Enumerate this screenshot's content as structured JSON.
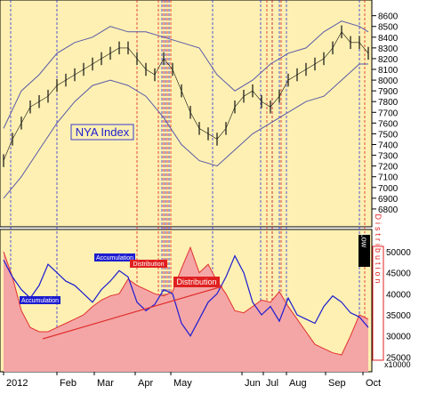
{
  "colors": {
    "panel_bg": "#fdf0b2",
    "price_bar": "#111111",
    "band": "#5a5aa8",
    "accum_line": "#1c1cd0",
    "dist_line": "#e03030",
    "dist_fill": "#f4a6a6",
    "acc_vline": "#3030e0",
    "dist_vline": "#e02020",
    "grid": "#888888"
  },
  "chart_data": [
    {
      "type": "line",
      "title": "NYA Index",
      "y_ticks": [
        6800,
        6900,
        7000,
        7100,
        7200,
        7300,
        7400,
        7500,
        7600,
        7700,
        7800,
        7900,
        8000,
        8100,
        8200,
        8300,
        8400,
        8500,
        8600
      ],
      "ylim": [
        6700,
        8680
      ],
      "x_ticks": [
        "2012",
        "Feb",
        "Mar",
        "Apr",
        "May",
        "Jun",
        "Jul",
        "Aug",
        "Sep",
        "Oct"
      ],
      "series": [
        {
          "x": [
            0,
            10,
            20,
            30,
            40,
            50,
            60,
            70,
            80,
            90,
            100,
            110,
            120,
            130,
            140,
            150,
            160,
            170,
            180,
            190,
            200,
            210,
            220,
            230,
            240,
            250,
            260,
            270,
            280,
            290,
            300,
            310,
            320,
            330,
            340,
            350,
            360,
            370,
            380,
            390,
            400,
            410
          ],
          "values": [
            7250,
            7450,
            7600,
            7750,
            7800,
            7850,
            7950,
            8000,
            8050,
            8100,
            8150,
            8200,
            8250,
            8300,
            8300,
            8200,
            8100,
            8050,
            8200,
            8100,
            7900,
            7700,
            7550,
            7500,
            7450,
            7550,
            7750,
            7850,
            7900,
            7800,
            7750,
            7850,
            8000,
            8050,
            8100,
            8150,
            8200,
            8300,
            8450,
            8350,
            8350,
            8250
          ]
        },
        {
          "x": [
            0,
            20,
            40,
            60,
            80,
            100,
            120,
            140,
            160,
            180,
            200,
            220,
            240,
            260,
            280,
            300,
            320,
            340,
            360,
            380,
            400,
            410
          ],
          "values": [
            7550,
            7900,
            8050,
            8250,
            8350,
            8400,
            8500,
            8450,
            8450,
            8400,
            8350,
            8300,
            8050,
            7900,
            8000,
            8150,
            8250,
            8300,
            8450,
            8550,
            8500,
            8450
          ]
        },
        {
          "x": [
            0,
            20,
            40,
            60,
            80,
            100,
            120,
            140,
            160,
            180,
            200,
            220,
            240,
            260,
            280,
            300,
            320,
            340,
            360,
            380,
            400,
            410
          ],
          "values": [
            6900,
            7100,
            7350,
            7600,
            7800,
            7950,
            8000,
            7950,
            7850,
            7650,
            7400,
            7250,
            7200,
            7350,
            7500,
            7600,
            7700,
            7800,
            7850,
            8000,
            8150,
            8150
          ]
        }
      ]
    },
    {
      "type": "line",
      "y_ticks": [
        25000,
        30000,
        35000,
        40000,
        45000,
        50000
      ],
      "y_tick_labels": [
        "25000",
        "30000",
        "35000",
        "40000",
        "45000",
        "50000"
      ],
      "ylim": [
        21500,
        54000
      ],
      "y_multiplier": "x10000",
      "x_ticks": [
        "2012",
        "Feb",
        "Mar",
        "Apr",
        "May",
        "Jun",
        "Jul",
        "Aug",
        "Sep",
        "Oct"
      ],
      "series": [
        {
          "x": [
            0,
            10,
            20,
            30,
            40,
            50,
            60,
            70,
            80,
            90,
            100,
            110,
            120,
            130,
            140,
            150,
            160,
            170,
            180,
            190,
            200,
            210,
            220,
            230,
            240,
            250,
            260,
            270,
            280,
            290,
            300,
            310,
            320,
            330,
            340,
            350,
            360,
            370,
            380,
            390,
            400,
            410
          ],
          "values": [
            48000,
            44000,
            41000,
            39000,
            42000,
            47000,
            45000,
            43000,
            42000,
            40000,
            38000,
            41000,
            43000,
            45500,
            44000,
            38000,
            36000,
            37500,
            41000,
            40000,
            33000,
            30000,
            34000,
            38000,
            40000,
            44000,
            49000,
            45000,
            38000,
            35000,
            37000,
            33500,
            39000,
            35000,
            34000,
            33000,
            37000,
            39500,
            38000,
            35500,
            34500,
            32000
          ]
        },
        {
          "x": [
            0,
            10,
            20,
            30,
            40,
            50,
            60,
            70,
            80,
            90,
            100,
            110,
            120,
            130,
            140,
            150,
            160,
            170,
            180,
            190,
            200,
            210,
            220,
            230,
            240,
            250,
            260,
            270,
            280,
            290,
            300,
            310,
            320,
            330,
            340,
            350,
            360,
            370,
            380,
            390,
            400,
            410
          ],
          "values": [
            50000,
            44000,
            36000,
            32000,
            31000,
            31000,
            32000,
            33000,
            34000,
            35000,
            37000,
            38500,
            39500,
            40000,
            43500,
            42000,
            41000,
            40000,
            39500,
            40500,
            46000,
            51000,
            45000,
            47000,
            43000,
            40000,
            36000,
            35500,
            37000,
            38500,
            38000,
            40500,
            37000,
            34000,
            31000,
            28000,
            27000,
            26000,
            25500,
            30000,
            35000,
            34000
          ]
        }
      ]
    }
  ],
  "labels": {
    "title": "NYA Index",
    "accumulation_1": "Accumulation",
    "accumulation_2": "Accumulation",
    "distribution_1": "Distribution",
    "distribution_2": "Distribution",
    "low_box": "Low",
    "distribution_vertical": "Distribution",
    "x_multiplier": "x10000"
  },
  "vertical_markers": {
    "accumulation_x": [
      8,
      60,
      178,
      182,
      186,
      235,
      289,
      302,
      310,
      318,
      400
    ],
    "distribution_x": [
      150,
      174,
      180,
      184,
      188,
      296,
      302,
      312,
      406
    ]
  }
}
